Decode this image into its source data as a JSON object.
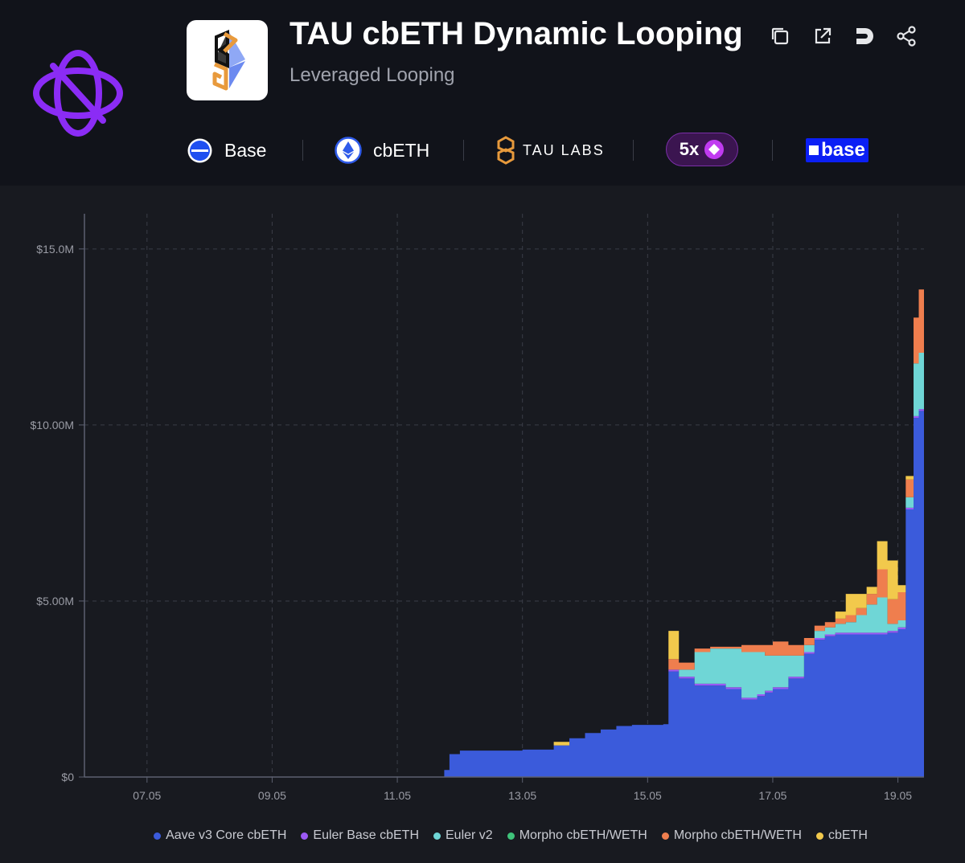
{
  "header": {
    "title": "TAU cbETH Dynamic Looping",
    "subtitle": "Leveraged Looping",
    "actions": [
      "copy-icon",
      "external-link-icon",
      "debank-icon",
      "share-icon"
    ]
  },
  "meta": {
    "network_label": "Base",
    "asset_label": "cbETH",
    "curator_label": "TAU LABS",
    "leverage_label": "5x",
    "platform_label": "base"
  },
  "colors": {
    "background": "#181a20",
    "header_bg": "#11131a",
    "brand_purple": "#8b2cf5",
    "base_blue": "#0b1ff5"
  },
  "chart_data": {
    "type": "area",
    "stacked": true,
    "title": "",
    "xlabel": "",
    "ylabel": "",
    "xlim": [
      "2025-05-06",
      "2025-05-19 10:00"
    ],
    "ylim": [
      0,
      16000000
    ],
    "y_ticks": [
      0,
      5000000,
      10000000,
      15000000
    ],
    "y_tick_labels": [
      "$0",
      "$5.00M",
      "$10.00M",
      "$15.0M"
    ],
    "x_tick_labels": [
      "07.05",
      "09.05",
      "11.05",
      "13.05",
      "15.05",
      "17.05",
      "19.05"
    ],
    "grid": true,
    "legend_position": "bottom",
    "x": [
      "11.05 18:00",
      "11.05 20:00",
      "12.05 00:00",
      "12.05 12:00",
      "13.05 00:00",
      "13.05 06:00",
      "13.05 12:00",
      "13.05 18:00",
      "14.05 00:00",
      "14.05 06:00",
      "14.05 12:00",
      "14.05 18:00",
      "15.05 00:00",
      "15.05 06:00",
      "15.05 08:00",
      "15.05 12:00",
      "15.05 18:00",
      "16.05 00:00",
      "16.05 06:00",
      "16.05 12:00",
      "16.05 18:00",
      "16.05 21:00",
      "17.05 00:00",
      "17.05 06:00",
      "17.05 12:00",
      "17.05 16:00",
      "17.05 20:00",
      "18.05 00:00",
      "18.05 04:00",
      "18.05 08:00",
      "18.05 12:00",
      "18.05 16:00",
      "18.05 20:00",
      "19.05 00:00",
      "19.05 03:00",
      "19.05 06:00",
      "19.05 08:00",
      "19.05 10:00"
    ],
    "series": [
      {
        "name": "Aave v3 Core cbETH",
        "color": "#3b5bdb",
        "values": [
          0.2,
          0.65,
          0.75,
          0.75,
          0.78,
          0.78,
          0.9,
          1.1,
          1.25,
          1.35,
          1.45,
          1.48,
          1.48,
          1.5,
          3.0,
          2.8,
          2.6,
          2.6,
          2.5,
          2.2,
          2.3,
          2.4,
          2.5,
          2.8,
          3.5,
          3.9,
          4.0,
          4.05,
          4.05,
          4.05,
          4.05,
          4.05,
          4.1,
          4.2,
          7.6,
          10.2,
          10.4,
          10.4
        ]
      },
      {
        "name": "Euler Base cbETH",
        "color": "#9b59f5",
        "values": [
          0,
          0,
          0,
          0,
          0,
          0,
          0,
          0,
          0,
          0,
          0,
          0,
          0,
          0,
          0.05,
          0.05,
          0.05,
          0.05,
          0.05,
          0.05,
          0.05,
          0.05,
          0.05,
          0.05,
          0.05,
          0.05,
          0.05,
          0.05,
          0.05,
          0.05,
          0.05,
          0.05,
          0.05,
          0.05,
          0.05,
          0.05,
          0.05,
          0.05
        ]
      },
      {
        "name": "Euler v2",
        "color": "#6fd6d6",
        "values": [
          0,
          0,
          0,
          0,
          0,
          0,
          0,
          0,
          0,
          0,
          0,
          0,
          0,
          0,
          0,
          0.2,
          0.9,
          1.0,
          1.1,
          1.3,
          1.2,
          1.0,
          0.9,
          0.6,
          0.2,
          0.2,
          0.2,
          0.25,
          0.3,
          0.5,
          0.8,
          1.0,
          0.2,
          0.2,
          0.3,
          1.5,
          1.6,
          2.0
        ]
      },
      {
        "name": "Morpho cbETH/WETH",
        "color": "#3fc37a",
        "values": [
          0,
          0,
          0,
          0,
          0,
          0,
          0,
          0,
          0,
          0,
          0,
          0,
          0,
          0,
          0,
          0,
          0,
          0,
          0,
          0,
          0,
          0,
          0,
          0,
          0,
          0,
          0,
          0,
          0,
          0,
          0,
          0,
          0,
          0,
          0,
          0,
          0,
          0
        ]
      },
      {
        "name": "Morpho cbETH/WETH",
        "color": "#ef7e4e",
        "values": [
          0,
          0,
          0,
          0,
          0,
          0,
          0,
          0,
          0,
          0,
          0,
          0,
          0,
          0,
          0.3,
          0.2,
          0.1,
          0.05,
          0.05,
          0.2,
          0.2,
          0.3,
          0.4,
          0.3,
          0.2,
          0.15,
          0.15,
          0.15,
          0.2,
          0.2,
          0.3,
          0.8,
          0.7,
          0.8,
          0.5,
          1.3,
          1.8,
          2.0
        ]
      },
      {
        "name": "cbETH",
        "color": "#f2c94c",
        "values": [
          0,
          0,
          0,
          0,
          0,
          0,
          0.1,
          0,
          0,
          0,
          0,
          0,
          0,
          0,
          0.8,
          0,
          0,
          0,
          0,
          0,
          0,
          0,
          0,
          0,
          0,
          0,
          0,
          0.2,
          0.6,
          0.4,
          0.2,
          0.8,
          1.1,
          0.2,
          0.1,
          0,
          0,
          0
        ]
      }
    ],
    "value_unit_multiplier": 1000000
  },
  "legend": {
    "items": [
      {
        "label": "Aave v3 Core cbETH",
        "color": "#3b5bdb"
      },
      {
        "label": "Euler Base cbETH",
        "color": "#9b59f5"
      },
      {
        "label": "Euler v2",
        "color": "#6fd6d6"
      },
      {
        "label": "Morpho cbETH/WETH",
        "color": "#3fc37a"
      },
      {
        "label": "Morpho cbETH/WETH",
        "color": "#ef7e4e"
      },
      {
        "label": "cbETH",
        "color": "#f2c94c"
      }
    ]
  }
}
